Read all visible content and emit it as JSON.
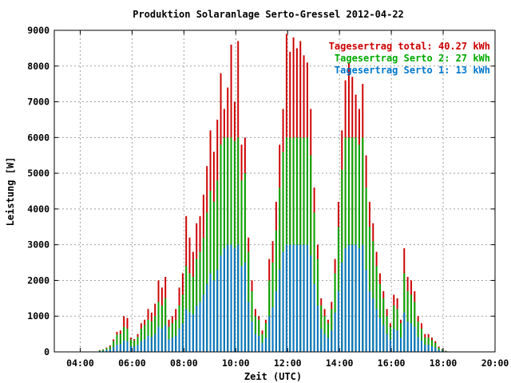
{
  "chart_data": {
    "type": "bar",
    "title": "Produktion Solaranlage Serto-Gressel 2012-04-22",
    "xlabel": "Zeit (UTC)",
    "ylabel": "Leistung [W]",
    "xlim": [
      3.0,
      20.0
    ],
    "ylim": [
      0,
      9000
    ],
    "x_ticks": [
      {
        "value": 4,
        "label": "04:00"
      },
      {
        "value": 6,
        "label": "06:00"
      },
      {
        "value": 8,
        "label": "08:00"
      },
      {
        "value": 10,
        "label": "10:00"
      },
      {
        "value": 12,
        "label": "12:00"
      },
      {
        "value": 14,
        "label": "14:00"
      },
      {
        "value": 16,
        "label": "16:00"
      },
      {
        "value": 18,
        "label": "18:00"
      },
      {
        "value": 20,
        "label": "20:00"
      }
    ],
    "y_ticks": [
      {
        "value": 0,
        "label": "0"
      },
      {
        "value": 1000,
        "label": "1000"
      },
      {
        "value": 2000,
        "label": "2000"
      },
      {
        "value": 3000,
        "label": "3000"
      },
      {
        "value": 4000,
        "label": "4000"
      },
      {
        "value": 5000,
        "label": "5000"
      },
      {
        "value": 6000,
        "label": "6000"
      },
      {
        "value": 7000,
        "label": "7000"
      },
      {
        "value": 8000,
        "label": "8000"
      },
      {
        "value": 9000,
        "label": "9000"
      }
    ],
    "grid": true,
    "legend_position": "top-right",
    "series": [
      {
        "name": "Tagesertrag total: 40.27 kWh",
        "color": "#cc0000",
        "values": [
          50,
          70,
          120,
          180,
          350,
          560,
          600,
          1000,
          950,
          400,
          360,
          500,
          800,
          900,
          1200,
          1100,
          1350,
          2000,
          1800,
          2100,
          900,
          1000,
          1200,
          1800,
          2200,
          3800,
          3200,
          2800,
          3600,
          3800,
          4400,
          5200,
          6200,
          5600,
          6500,
          7800,
          6800,
          7400,
          8600,
          7000,
          8700,
          5800,
          6000,
          3200,
          2000,
          1200,
          1000,
          600,
          900,
          2600,
          3100,
          4200,
          5800,
          6800,
          8900,
          8400,
          8800,
          8500,
          8700,
          8300,
          8100,
          6800,
          4600,
          3000,
          1500,
          1200,
          900,
          1400,
          2600,
          4200,
          6200,
          7600,
          8100,
          7700,
          7200,
          6800,
          7500,
          5500,
          4200,
          3600,
          2800,
          2200,
          1700,
          1200,
          800,
          1600,
          1500,
          900,
          2900,
          2100,
          2000,
          1700,
          1000,
          800,
          500,
          500,
          400,
          300,
          150,
          80,
          30
        ]
      },
      {
        "name": "Tagesertrag Serto 2: 27 kWh",
        "color": "#00aa00",
        "values": [
          40,
          60,
          100,
          150,
          300,
          480,
          500,
          700,
          650,
          350,
          320,
          420,
          650,
          750,
          900,
          850,
          1000,
          1400,
          1300,
          1500,
          700,
          800,
          900,
          1300,
          1600,
          2400,
          2200,
          2100,
          2600,
          2800,
          3200,
          3900,
          4500,
          4200,
          4800,
          5800,
          6000,
          6000,
          6000,
          5900,
          6000,
          4800,
          5000,
          2800,
          1700,
          1000,
          900,
          500,
          800,
          2000,
          2500,
          3400,
          4600,
          5600,
          6000,
          6000,
          6000,
          6000,
          6000,
          6000,
          6000,
          5500,
          3900,
          2600,
          1300,
          1000,
          800,
          1200,
          2200,
          3500,
          5100,
          6000,
          6000,
          6000,
          6000,
          5800,
          6000,
          4600,
          3500,
          3100,
          2400,
          1900,
          1500,
          1000,
          700,
          1300,
          1200,
          800,
          2200,
          1700,
          1600,
          1400,
          850,
          650,
          400,
          400,
          330,
          250,
          120,
          70,
          25
        ]
      },
      {
        "name": "Tagesertrag Serto 1: 13 kWh",
        "color": "#0077cc",
        "values": [
          20,
          30,
          50,
          70,
          130,
          200,
          220,
          320,
          300,
          160,
          150,
          200,
          300,
          350,
          450,
          420,
          500,
          700,
          650,
          750,
          350,
          400,
          450,
          650,
          800,
          1200,
          1100,
          1050,
          1300,
          1400,
          1600,
          1900,
          2200,
          2000,
          2300,
          2700,
          2900,
          3000,
          3000,
          2900,
          3000,
          2400,
          2500,
          1400,
          850,
          500,
          450,
          250,
          400,
          1000,
          1250,
          1700,
          2300,
          2800,
          3000,
          3000,
          3000,
          3000,
          3000,
          3000,
          3000,
          2700,
          1900,
          1300,
          650,
          500,
          400,
          600,
          1100,
          1700,
          2500,
          2900,
          3000,
          3000,
          3000,
          2900,
          3000,
          2300,
          1700,
          1500,
          1200,
          950,
          750,
          500,
          350,
          650,
          600,
          400,
          1100,
          850,
          800,
          700,
          420,
          320,
          200,
          200,
          160,
          120,
          60,
          35,
          12
        ]
      }
    ],
    "x_start": 4.75,
    "x_end": 18.1
  }
}
